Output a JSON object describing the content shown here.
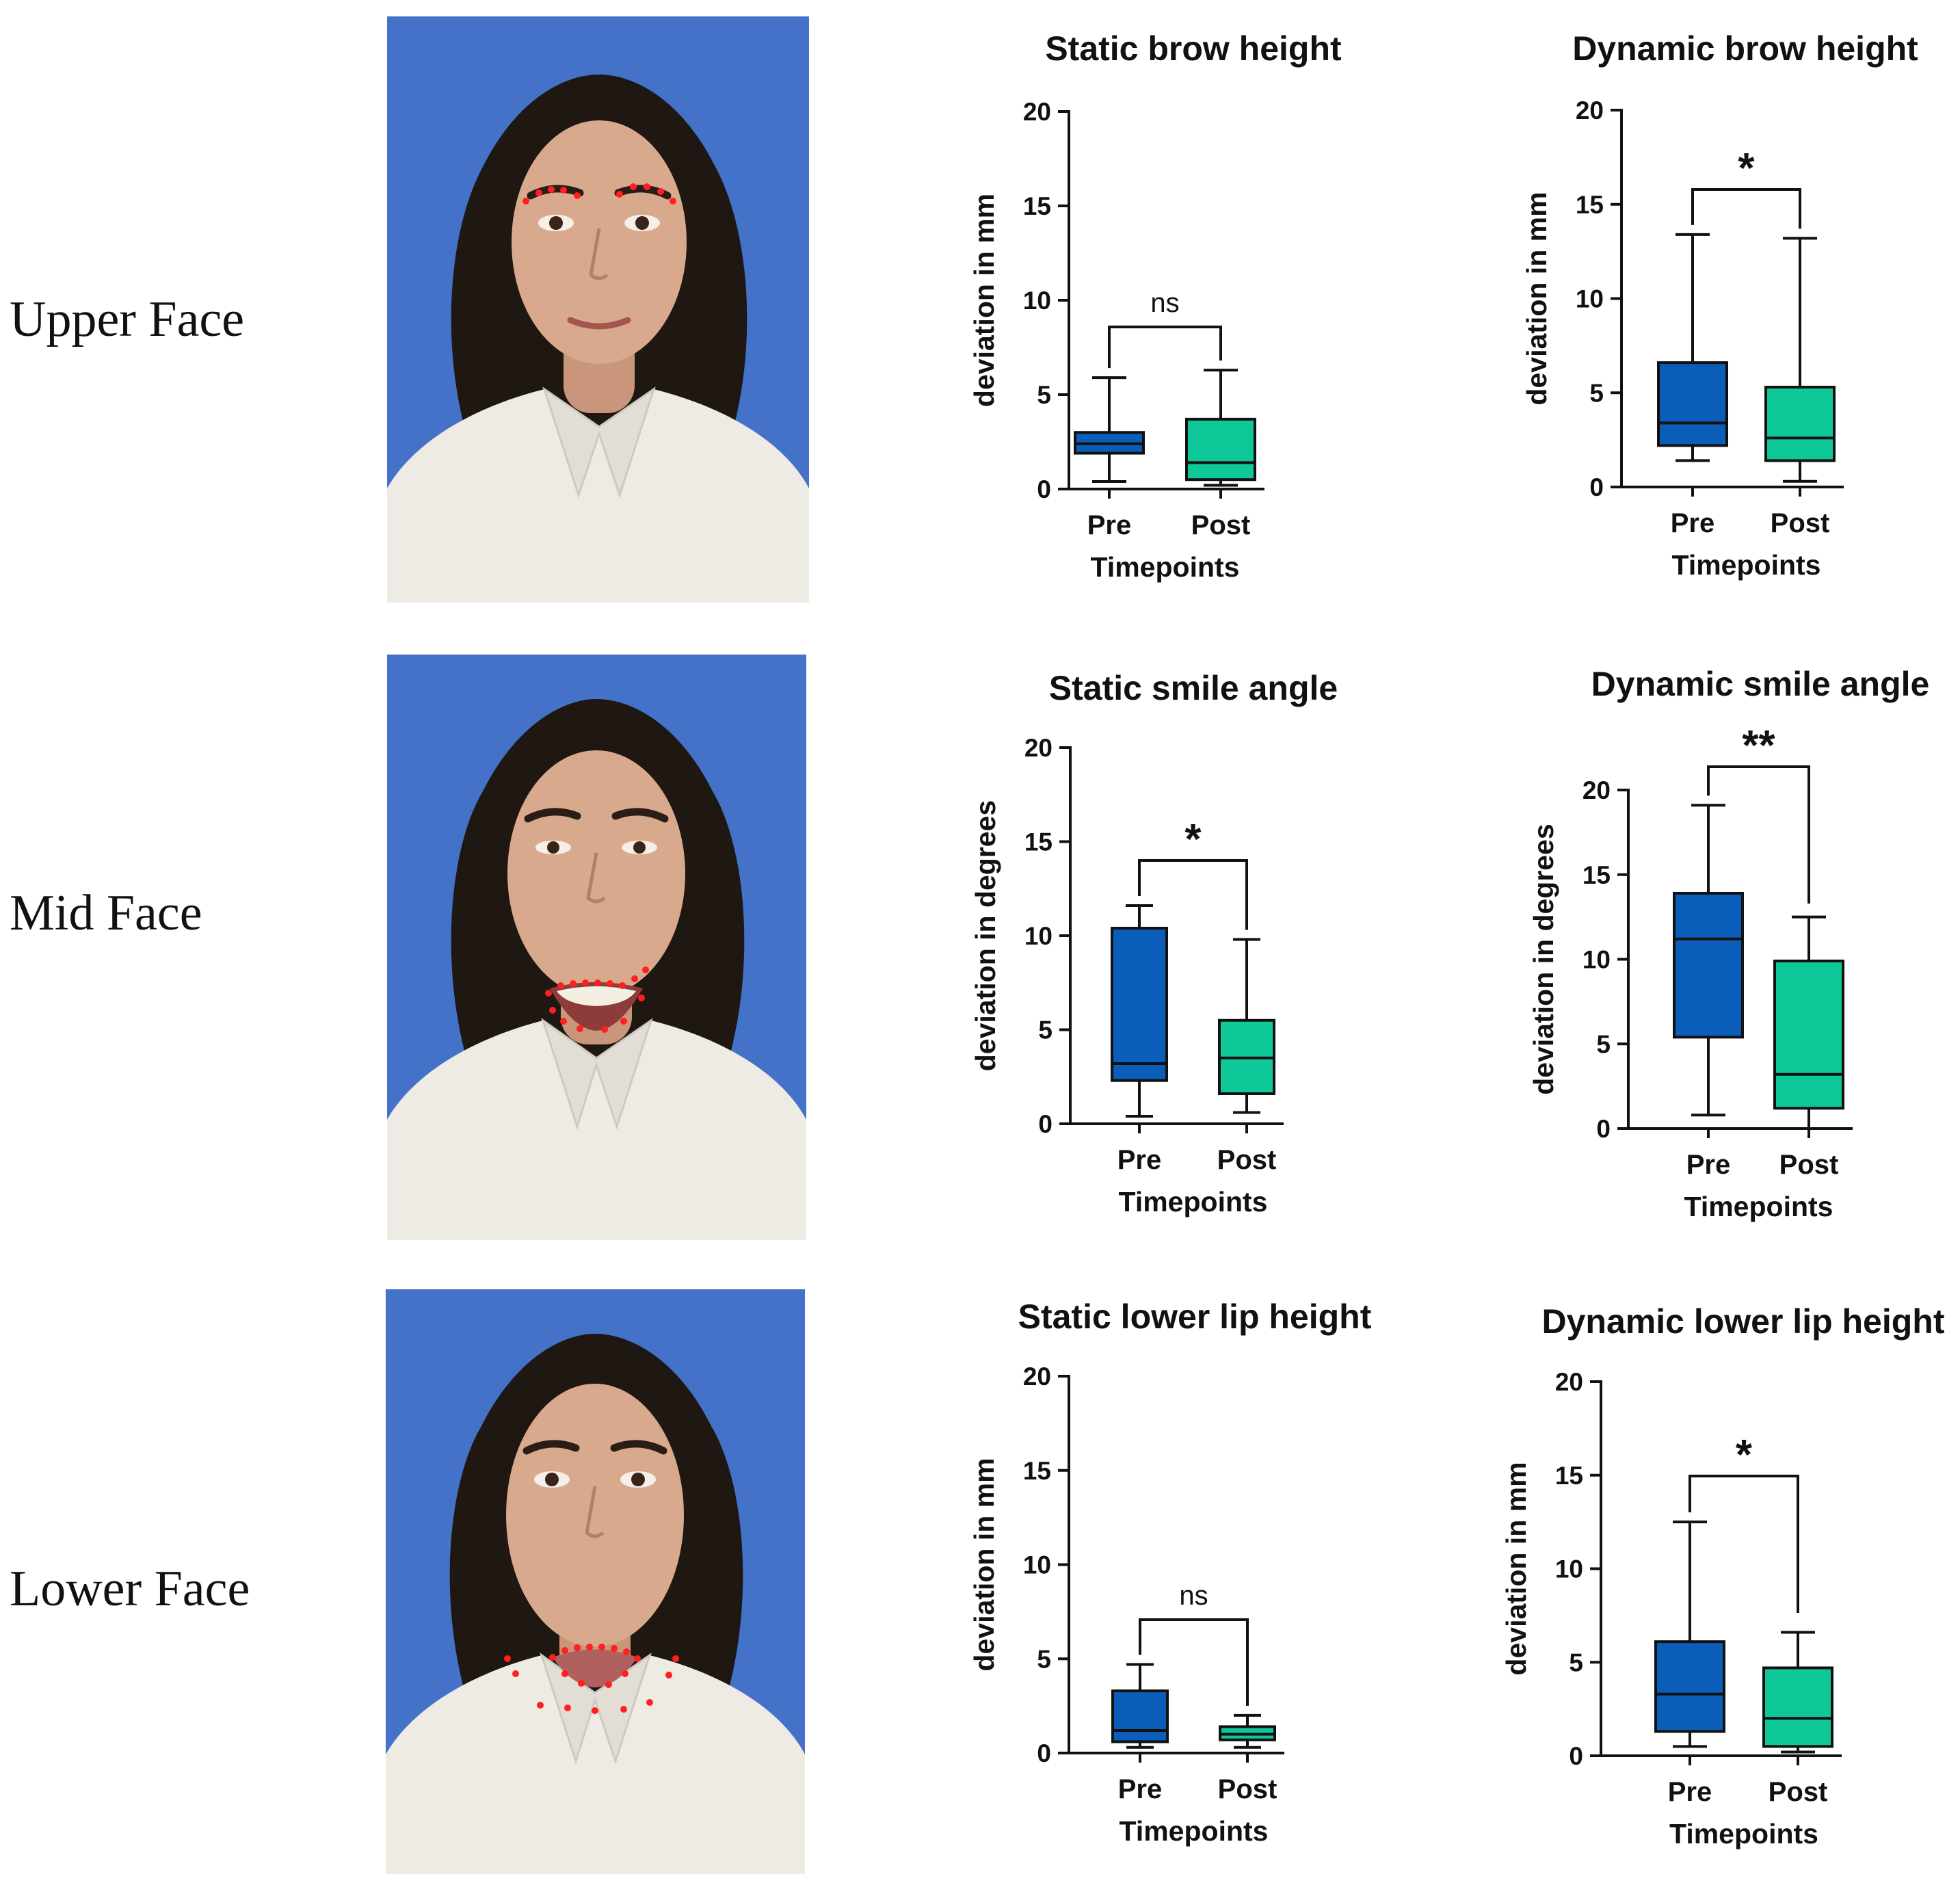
{
  "colors": {
    "photo_bg": "#4372c8",
    "pre_box": "#0a5eb9",
    "post_box": "#0fc89a",
    "landmark": "#ff1f1f",
    "hair": "#1e1712",
    "skin": "#d9a98d",
    "shirt": "#eeebe4"
  },
  "rows": [
    {
      "label": "Upper Face",
      "photo_icon": "face-photo-upper-landmarks-icon"
    },
    {
      "label": "Mid Face",
      "photo_icon": "face-photo-mid-landmarks-icon"
    },
    {
      "label": "Lower Face",
      "photo_icon": "face-photo-lower-landmarks-icon"
    }
  ],
  "chart_data": [
    {
      "type": "box",
      "title": "Static brow height",
      "xlabel": "Timepoints",
      "ylabel": "deviation in mm",
      "categories": [
        "Pre",
        "Post"
      ],
      "ylim": [
        0,
        20
      ],
      "yticks": [
        "0",
        "5",
        "10",
        "15",
        "20"
      ],
      "series": [
        {
          "name": "Pre",
          "min": 0.4,
          "q1": 1.9,
          "median": 2.4,
          "q3": 3.0,
          "max": 5.9
        },
        {
          "name": "Post",
          "min": 0.2,
          "q1": 0.5,
          "median": 1.4,
          "q3": 3.7,
          "max": 6.3
        }
      ],
      "significance": "ns"
    },
    {
      "type": "box",
      "title": "Dynamic brow height",
      "xlabel": "Timepoints",
      "ylabel": "deviation in mm",
      "categories": [
        "Pre",
        "Post"
      ],
      "ylim": [
        0,
        20
      ],
      "yticks": [
        "0",
        "5",
        "10",
        "15",
        "20"
      ],
      "series": [
        {
          "name": "Pre",
          "min": 1.4,
          "q1": 2.2,
          "median": 3.4,
          "q3": 6.6,
          "max": 13.4
        },
        {
          "name": "Post",
          "min": 0.3,
          "q1": 1.4,
          "median": 2.6,
          "q3": 5.3,
          "max": 13.2
        }
      ],
      "significance": "*"
    },
    {
      "type": "box",
      "title": "Static smile angle",
      "xlabel": "Timepoints",
      "ylabel": "deviation in degrees",
      "categories": [
        "Pre",
        "Post"
      ],
      "ylim": [
        0,
        20
      ],
      "yticks": [
        "0",
        "5",
        "10",
        "15",
        "20"
      ],
      "series": [
        {
          "name": "Pre",
          "min": 0.4,
          "q1": 2.3,
          "median": 3.2,
          "q3": 10.4,
          "max": 11.6
        },
        {
          "name": "Post",
          "min": 0.6,
          "q1": 1.6,
          "median": 3.5,
          "q3": 5.5,
          "max": 9.8
        }
      ],
      "significance": "*"
    },
    {
      "type": "box",
      "title": "Dynamic smile angle",
      "xlabel": "Timepoints",
      "ylabel": "deviation in degrees",
      "categories": [
        "Pre",
        "Post"
      ],
      "ylim": [
        0,
        20
      ],
      "yticks": [
        "0",
        "5",
        "10",
        "15",
        "20"
      ],
      "series": [
        {
          "name": "Pre",
          "min": 0.8,
          "q1": 5.4,
          "median": 11.2,
          "q3": 13.9,
          "max": 19.1
        },
        {
          "name": "Post",
          "min": 0.0,
          "q1": 1.2,
          "median": 3.2,
          "q3": 9.9,
          "max": 12.5
        }
      ],
      "significance": "**"
    },
    {
      "type": "box",
      "title": "Static lower lip height",
      "xlabel": "Timepoints",
      "ylabel": "deviation in mm",
      "categories": [
        "Pre",
        "Post"
      ],
      "ylim": [
        0,
        20
      ],
      "yticks": [
        "0",
        "5",
        "10",
        "15",
        "20"
      ],
      "series": [
        {
          "name": "Pre",
          "min": 0.3,
          "q1": 0.6,
          "median": 1.2,
          "q3": 3.3,
          "max": 4.7
        },
        {
          "name": "Post",
          "min": 0.3,
          "q1": 0.7,
          "median": 1.0,
          "q3": 1.4,
          "max": 2.0
        }
      ],
      "significance": "ns"
    },
    {
      "type": "box",
      "title": "Dynamic lower lip height",
      "xlabel": "Timepoints",
      "ylabel": "deviation in mm",
      "categories": [
        "Pre",
        "Post"
      ],
      "ylim": [
        0,
        20
      ],
      "yticks": [
        "0",
        "5",
        "10",
        "15",
        "20"
      ],
      "series": [
        {
          "name": "Pre",
          "min": 0.5,
          "q1": 1.3,
          "median": 3.3,
          "q3": 6.1,
          "max": 12.5
        },
        {
          "name": "Post",
          "min": 0.2,
          "q1": 0.5,
          "median": 2.0,
          "q3": 4.7,
          "max": 6.6
        }
      ],
      "significance": "*"
    }
  ]
}
